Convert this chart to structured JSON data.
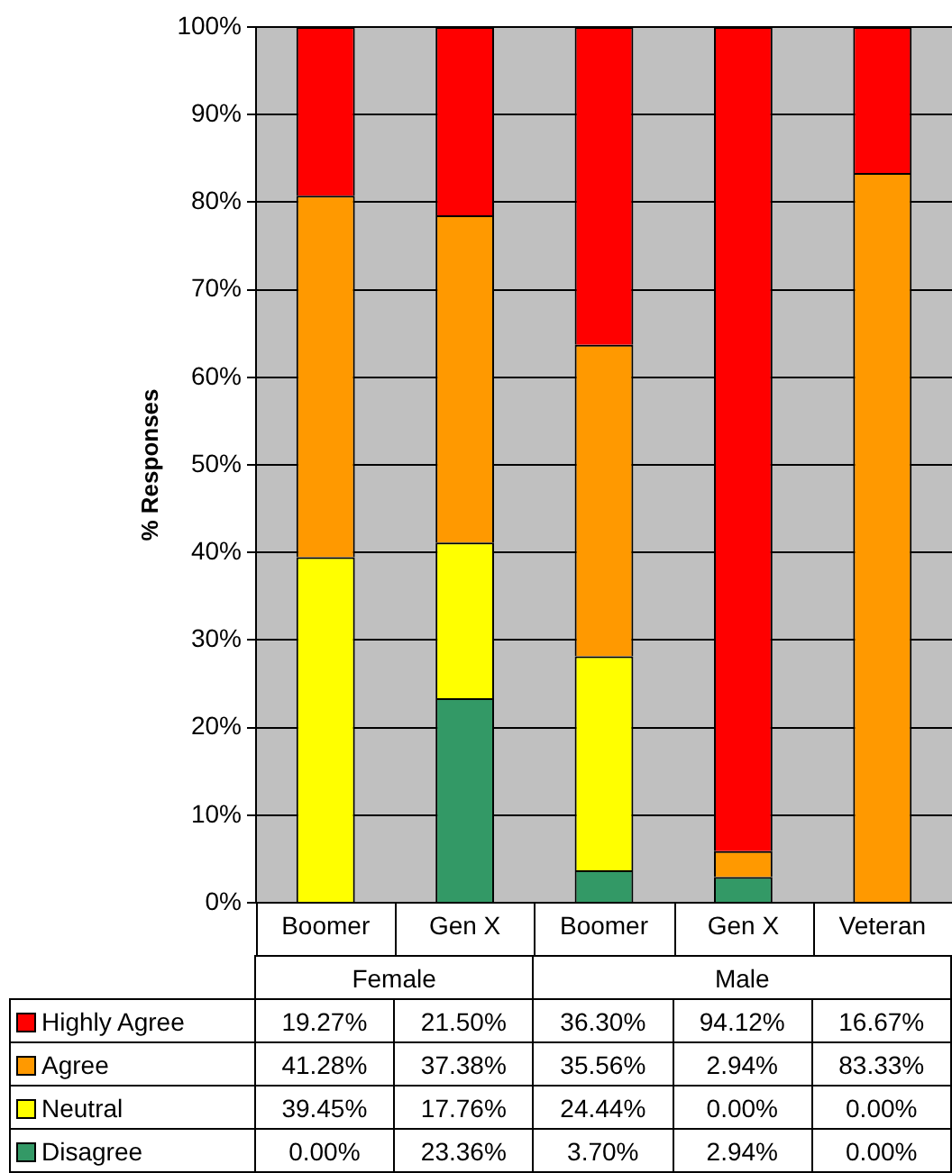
{
  "chart_data": {
    "type": "bar",
    "stacked": true,
    "ylabel": "% Responses",
    "categories": [
      "Boomer",
      "Gen X",
      "Boomer",
      "Gen X",
      "Veteran"
    ],
    "annotations": [
      "Female",
      "Male"
    ],
    "ylim": [
      0,
      100
    ],
    "yticks": [
      {
        "value": 0,
        "label": "0%"
      },
      {
        "value": 10,
        "label": "10%"
      },
      {
        "value": 20,
        "label": "20%"
      },
      {
        "value": 30,
        "label": "30%"
      },
      {
        "value": 40,
        "label": "40%"
      },
      {
        "value": 50,
        "label": "50%"
      },
      {
        "value": 60,
        "label": "60%"
      },
      {
        "value": 70,
        "label": "70%"
      },
      {
        "value": 80,
        "label": "80%"
      },
      {
        "value": 90,
        "label": "90%"
      },
      {
        "value": 100,
        "label": "100%"
      }
    ],
    "grid": "y",
    "legend": "bottom",
    "series": [
      {
        "name": "Disagree",
        "color": "#339966",
        "values": [
          0,
          23.36,
          3.7,
          2.94,
          0
        ],
        "value_labels": [
          "0.00%",
          "23.36%",
          "3.70%",
          "2.94%",
          "0.00%"
        ]
      },
      {
        "name": "Neutral",
        "color": "#ffff00",
        "values": [
          39.45,
          17.76,
          24.44,
          0,
          0
        ],
        "value_labels": [
          "39.45%",
          "17.76%",
          "24.44%",
          "0.00%",
          "0.00%"
        ]
      },
      {
        "name": "Agree",
        "color": "#ff9900",
        "values": [
          41.28,
          37.38,
          35.56,
          2.94,
          83.33
        ],
        "value_labels": [
          "41.28%",
          "37.38%",
          "35.56%",
          "2.94%",
          "83.33%"
        ]
      },
      {
        "name": "Highly Agree",
        "color": "#ff0000",
        "values": [
          19.27,
          21.5,
          36.3,
          94.12,
          16.67
        ],
        "value_labels": [
          "19.27%",
          "21.50%",
          "36.30%",
          "94.12%",
          "16.67%"
        ]
      }
    ]
  }
}
